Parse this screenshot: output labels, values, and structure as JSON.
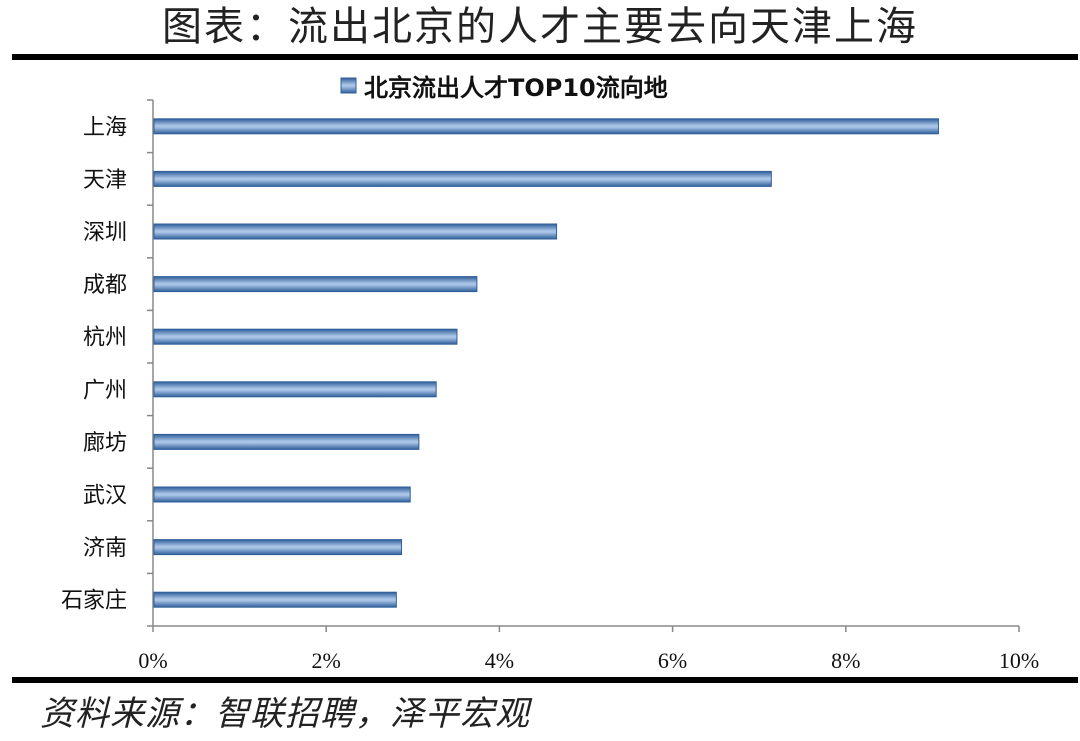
{
  "header": {
    "title": "图表：流出北京的人才主要去向天津上海"
  },
  "footer": {
    "source": "资料来源：智联招聘，泽平宏观"
  },
  "chart_data": {
    "type": "bar",
    "orientation": "horizontal",
    "title": "",
    "legend": [
      "北京流出人才TOP10流向地"
    ],
    "legend_position": "top",
    "categories": [
      "上海",
      "天津",
      "深圳",
      "成都",
      "杭州",
      "广州",
      "廊坊",
      "武汉",
      "济南",
      "石家庄"
    ],
    "series": [
      {
        "name": "北京流出人才TOP10流向地",
        "values": [
          9.07,
          7.14,
          4.66,
          3.74,
          3.51,
          3.27,
          3.07,
          2.97,
          2.87,
          2.81
        ]
      }
    ],
    "xticks": [
      "0%",
      "2%",
      "4%",
      "6%",
      "8%",
      "10%"
    ],
    "xlim": [
      0,
      10
    ],
    "grid": false,
    "colors": {
      "bar": "#4a7ebb",
      "bar_edge": "#2f5f9a",
      "axis": "#888888"
    }
  }
}
